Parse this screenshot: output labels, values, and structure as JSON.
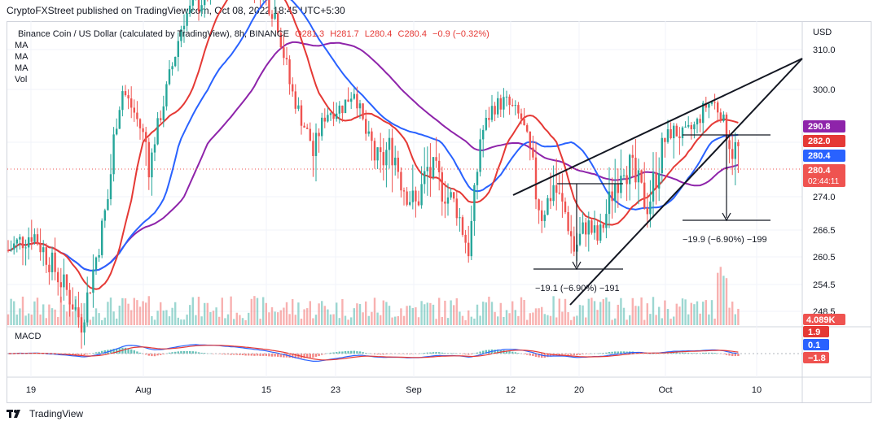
{
  "header": {
    "text": "CryptoFXStreet published on TradingView.com, Oct 08, 2022 18:45 UTC+5:30"
  },
  "legend": {
    "symbol": "Binance Coin / US Dollar (calculated by TradingView), 8h, BINANCE",
    "o": "O281.3",
    "h": "H281.7",
    "l": "L280.4",
    "c": "C280.4",
    "change": "−0.9 (−0.32%)",
    "indicators": [
      "MA",
      "MA",
      "MA",
      "Vol"
    ]
  },
  "macd_label": "MACD",
  "currency": "USD",
  "footer": {
    "brand": "TradingView"
  },
  "colors": {
    "up": "#26a69a",
    "down": "#ef5350",
    "ma_red": "#e53935",
    "ma_blue": "#2962ff",
    "ma_purple": "#8e24aa",
    "grid": "#f0f3fa"
  },
  "chart_data": {
    "type": "candlestick",
    "y_ticks": [
      "310.0",
      "300.0",
      "282.0",
      "274.0",
      "266.5",
      "260.5",
      "254.5",
      "248.5"
    ],
    "x_ticks": [
      "19",
      "Aug",
      "15",
      "23",
      "Sep",
      "12",
      "20",
      "Oct",
      "10"
    ],
    "price_badges": [
      {
        "label": "290.8",
        "value": 290.8,
        "color": "#8e24aa"
      },
      {
        "label": "282.0",
        "value": 282.0,
        "color": "#e53935"
      },
      {
        "label": "280.4",
        "value": 280.4,
        "color": "#2962ff"
      },
      {
        "label": "280.4",
        "value": 278.6,
        "color": "#ef5350",
        "sub": "02:44:11"
      }
    ],
    "volume_badge": "4.089K",
    "macd_badges": [
      {
        "label": "1.9",
        "color": "#e53935"
      },
      {
        "label": "0.1",
        "color": "#2962ff"
      },
      {
        "label": "−1.8",
        "color": "#ef5350"
      }
    ],
    "annotations": [
      {
        "text": "−19.9 (−6.90%) −199"
      },
      {
        "text": "−19.1 (−6.90%) −191"
      }
    ],
    "last_price": 280.4
  }
}
